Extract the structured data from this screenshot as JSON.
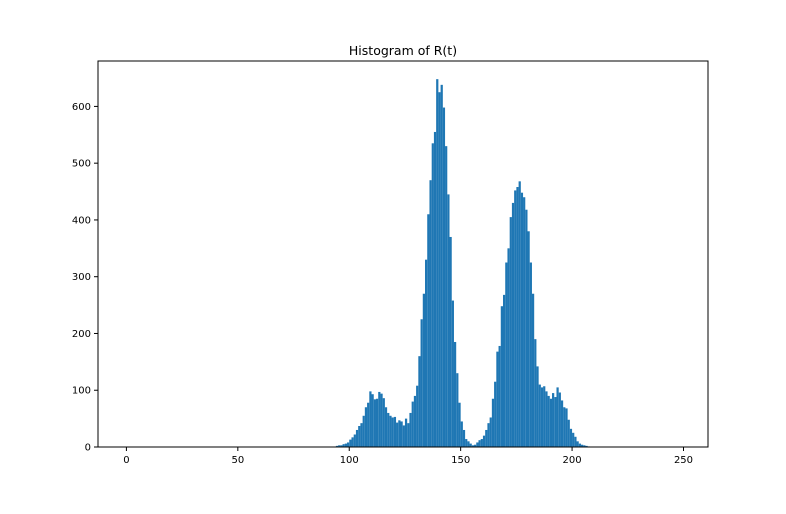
{
  "chart_data": {
    "type": "bar",
    "title": "Histogram of R(t)",
    "xlabel": "",
    "ylabel": "",
    "xlim": [
      -12.75,
      261
    ],
    "ylim": [
      0,
      680
    ],
    "xticks": [
      0,
      50,
      100,
      150,
      200,
      250
    ],
    "yticks": [
      0,
      100,
      200,
      300,
      400,
      500,
      600
    ],
    "grid": false,
    "bar_color": "#1f77b4",
    "bin_width": 1,
    "bins": [
      {
        "x": 94,
        "y": 2
      },
      {
        "x": 95,
        "y": 3
      },
      {
        "x": 96,
        "y": 3
      },
      {
        "x": 97,
        "y": 5
      },
      {
        "x": 98,
        "y": 6
      },
      {
        "x": 99,
        "y": 8
      },
      {
        "x": 100,
        "y": 13
      },
      {
        "x": 101,
        "y": 17
      },
      {
        "x": 102,
        "y": 22
      },
      {
        "x": 103,
        "y": 30
      },
      {
        "x": 104,
        "y": 37
      },
      {
        "x": 105,
        "y": 42
      },
      {
        "x": 106,
        "y": 55
      },
      {
        "x": 107,
        "y": 70
      },
      {
        "x": 108,
        "y": 78
      },
      {
        "x": 109,
        "y": 98
      },
      {
        "x": 110,
        "y": 93
      },
      {
        "x": 111,
        "y": 84
      },
      {
        "x": 112,
        "y": 85
      },
      {
        "x": 113,
        "y": 97
      },
      {
        "x": 114,
        "y": 94
      },
      {
        "x": 115,
        "y": 86
      },
      {
        "x": 116,
        "y": 70
      },
      {
        "x": 117,
        "y": 60
      },
      {
        "x": 118,
        "y": 55
      },
      {
        "x": 119,
        "y": 52
      },
      {
        "x": 120,
        "y": 53
      },
      {
        "x": 121,
        "y": 43
      },
      {
        "x": 122,
        "y": 47
      },
      {
        "x": 123,
        "y": 45
      },
      {
        "x": 124,
        "y": 38
      },
      {
        "x": 125,
        "y": 50
      },
      {
        "x": 126,
        "y": 42
      },
      {
        "x": 127,
        "y": 60
      },
      {
        "x": 128,
        "y": 80
      },
      {
        "x": 129,
        "y": 90
      },
      {
        "x": 130,
        "y": 108
      },
      {
        "x": 131,
        "y": 160
      },
      {
        "x": 132,
        "y": 225
      },
      {
        "x": 133,
        "y": 270
      },
      {
        "x": 134,
        "y": 330
      },
      {
        "x": 135,
        "y": 410
      },
      {
        "x": 136,
        "y": 470
      },
      {
        "x": 137,
        "y": 535
      },
      {
        "x": 138,
        "y": 555
      },
      {
        "x": 139,
        "y": 648
      },
      {
        "x": 140,
        "y": 625
      },
      {
        "x": 141,
        "y": 638
      },
      {
        "x": 142,
        "y": 598
      },
      {
        "x": 143,
        "y": 530
      },
      {
        "x": 144,
        "y": 445
      },
      {
        "x": 145,
        "y": 370
      },
      {
        "x": 146,
        "y": 258
      },
      {
        "x": 147,
        "y": 185
      },
      {
        "x": 148,
        "y": 130
      },
      {
        "x": 149,
        "y": 78
      },
      {
        "x": 150,
        "y": 45
      },
      {
        "x": 151,
        "y": 30
      },
      {
        "x": 152,
        "y": 14
      },
      {
        "x": 153,
        "y": 10
      },
      {
        "x": 154,
        "y": 6
      },
      {
        "x": 155,
        "y": 3
      },
      {
        "x": 156,
        "y": 4
      },
      {
        "x": 157,
        "y": 8
      },
      {
        "x": 158,
        "y": 12
      },
      {
        "x": 159,
        "y": 14
      },
      {
        "x": 160,
        "y": 20
      },
      {
        "x": 161,
        "y": 30
      },
      {
        "x": 162,
        "y": 42
      },
      {
        "x": 163,
        "y": 52
      },
      {
        "x": 164,
        "y": 85
      },
      {
        "x": 165,
        "y": 115
      },
      {
        "x": 166,
        "y": 168
      },
      {
        "x": 167,
        "y": 178
      },
      {
        "x": 168,
        "y": 248
      },
      {
        "x": 169,
        "y": 268
      },
      {
        "x": 170,
        "y": 325
      },
      {
        "x": 171,
        "y": 350
      },
      {
        "x": 172,
        "y": 405
      },
      {
        "x": 173,
        "y": 430
      },
      {
        "x": 174,
        "y": 452
      },
      {
        "x": 175,
        "y": 458
      },
      {
        "x": 176,
        "y": 468
      },
      {
        "x": 177,
        "y": 448
      },
      {
        "x": 178,
        "y": 440
      },
      {
        "x": 179,
        "y": 418
      },
      {
        "x": 180,
        "y": 380
      },
      {
        "x": 181,
        "y": 325
      },
      {
        "x": 182,
        "y": 270
      },
      {
        "x": 183,
        "y": 190
      },
      {
        "x": 184,
        "y": 142
      },
      {
        "x": 185,
        "y": 110
      },
      {
        "x": 186,
        "y": 105
      },
      {
        "x": 187,
        "y": 107
      },
      {
        "x": 188,
        "y": 98
      },
      {
        "x": 189,
        "y": 90
      },
      {
        "x": 190,
        "y": 85
      },
      {
        "x": 191,
        "y": 95
      },
      {
        "x": 192,
        "y": 88
      },
      {
        "x": 193,
        "y": 105
      },
      {
        "x": 194,
        "y": 96
      },
      {
        "x": 195,
        "y": 82
      },
      {
        "x": 196,
        "y": 70
      },
      {
        "x": 197,
        "y": 68
      },
      {
        "x": 198,
        "y": 48
      },
      {
        "x": 199,
        "y": 32
      },
      {
        "x": 200,
        "y": 25
      },
      {
        "x": 201,
        "y": 18
      },
      {
        "x": 202,
        "y": 10
      },
      {
        "x": 203,
        "y": 6
      },
      {
        "x": 204,
        "y": 4
      },
      {
        "x": 205,
        "y": 3
      },
      {
        "x": 206,
        "y": 2
      },
      {
        "x": 207,
        "y": 1
      }
    ]
  }
}
